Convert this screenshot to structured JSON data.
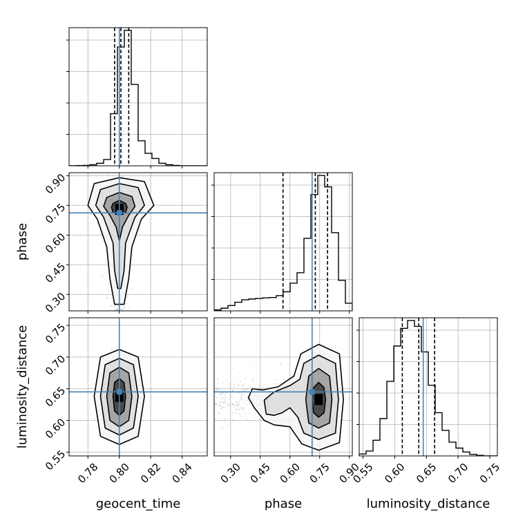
{
  "chart_data": {
    "type": "corner",
    "title": "",
    "parameters": [
      "geocent_time",
      "phase",
      "luminosity_distance"
    ],
    "axis_labels": {
      "geocent_time": "geocent_time",
      "phase": "phase",
      "luminosity_distance": "luminosity_distance"
    },
    "ranges": {
      "geocent_time": [
        0.768,
        0.856
      ],
      "phase": [
        0.217,
        0.915
      ],
      "luminosity_distance": [
        0.544,
        0.762
      ]
    },
    "ticks": {
      "geocent_time": [
        0.78,
        0.8,
        0.82,
        0.84
      ],
      "phase": [
        0.3,
        0.45,
        0.6,
        0.75,
        0.9
      ],
      "luminosity_distance": [
        0.55,
        0.6,
        0.65,
        0.7,
        0.75
      ]
    },
    "tick_labels": {
      "geocent_time": [
        "0.78",
        "0.80",
        "0.82",
        "0.84"
      ],
      "phase": [
        "0.30",
        "0.45",
        "0.60",
        "0.75",
        "0.90"
      ],
      "luminosity_distance": [
        "0.55",
        "0.60",
        "0.65",
        "0.70",
        "0.75"
      ]
    },
    "truths": {
      "geocent_time": 0.8,
      "phase": 0.712,
      "luminosity_distance": 0.645
    },
    "quantiles": {
      "geocent_time": [
        0.797,
        0.801,
        0.806
      ],
      "phase": [
        0.565,
        0.728,
        0.79
      ],
      "luminosity_distance": [
        0.612,
        0.638,
        0.663
      ]
    },
    "histograms": {
      "geocent_time": {
        "edges": [
          0.768,
          0.7724,
          0.7768,
          0.7812,
          0.7856,
          0.79,
          0.7944,
          0.7988,
          0.8032,
          0.8076,
          0.812,
          0.8164,
          0.8208,
          0.8252,
          0.8296,
          0.834,
          0.8384,
          0.8428,
          0.8472,
          0.8516,
          0.856
        ],
        "counts": [
          0,
          1,
          2,
          5,
          12,
          30,
          250,
          570,
          650,
          390,
          120,
          60,
          35,
          12,
          5,
          2,
          0,
          0,
          0,
          0
        ]
      },
      "phase": {
        "edges": [
          0.217,
          0.2519,
          0.2868,
          0.3217,
          0.3566,
          0.3915,
          0.4264,
          0.4613,
          0.4962,
          0.5311,
          0.566,
          0.6009,
          0.6358,
          0.6707,
          0.7056,
          0.7405,
          0.7754,
          0.8103,
          0.8452,
          0.8801,
          0.915
        ],
        "counts": [
          5,
          14,
          28,
          45,
          58,
          62,
          65,
          68,
          70,
          80,
          100,
          145,
          200,
          380,
          610,
          710,
          650,
          410,
          160,
          40
        ]
      },
      "luminosity_distance": {
        "edges": [
          0.544,
          0.5549,
          0.5658,
          0.5767,
          0.5876,
          0.5985,
          0.6094,
          0.6203,
          0.6312,
          0.6421,
          0.653,
          0.6639,
          0.6748,
          0.6857,
          0.6966,
          0.7075,
          0.7184,
          0.7293,
          0.7402,
          0.7511,
          0.762
        ],
        "counts": [
          10,
          25,
          80,
          190,
          380,
          560,
          650,
          690,
          660,
          530,
          360,
          220,
          130,
          70,
          40,
          20,
          8,
          3,
          0,
          0
        ]
      }
    },
    "panels_2d": [
      {
        "x": "geocent_time",
        "y": "phase",
        "center": [
          0.8,
          0.73
        ],
        "contours": [
          [
            [
              0.796,
              0.76
            ],
            [
              0.8,
              0.775
            ],
            [
              0.804,
              0.76
            ],
            [
              0.805,
              0.74
            ],
            [
              0.804,
              0.715
            ],
            [
              0.8,
              0.7
            ],
            [
              0.796,
              0.715
            ],
            [
              0.795,
              0.74
            ]
          ],
          [
            [
              0.792,
              0.79
            ],
            [
              0.8,
              0.815
            ],
            [
              0.808,
              0.795
            ],
            [
              0.81,
              0.745
            ],
            [
              0.806,
              0.7
            ],
            [
              0.802,
              0.64
            ],
            [
              0.8,
              0.57
            ],
            [
              0.798,
              0.64
            ],
            [
              0.794,
              0.7
            ],
            [
              0.79,
              0.745
            ]
          ],
          [
            [
              0.788,
              0.83
            ],
            [
              0.8,
              0.86
            ],
            [
              0.812,
              0.84
            ],
            [
              0.816,
              0.75
            ],
            [
              0.81,
              0.69
            ],
            [
              0.804,
              0.56
            ],
            [
              0.803,
              0.42
            ],
            [
              0.801,
              0.33
            ],
            [
              0.799,
              0.33
            ],
            [
              0.797,
              0.42
            ],
            [
              0.796,
              0.56
            ],
            [
              0.79,
              0.69
            ],
            [
              0.785,
              0.75
            ]
          ],
          [
            [
              0.784,
              0.86
            ],
            [
              0.8,
              0.89
            ],
            [
              0.816,
              0.87
            ],
            [
              0.822,
              0.75
            ],
            [
              0.814,
              0.68
            ],
            [
              0.808,
              0.54
            ],
            [
              0.806,
              0.38
            ],
            [
              0.803,
              0.25
            ],
            [
              0.797,
              0.25
            ],
            [
              0.794,
              0.38
            ],
            [
              0.792,
              0.54
            ],
            [
              0.786,
              0.68
            ],
            [
              0.78,
              0.75
            ]
          ]
        ]
      },
      {
        "x": "geocent_time",
        "y": "luminosity_distance",
        "center": [
          0.8,
          0.638
        ],
        "contours": [
          [
            [
              0.797,
              0.66
            ],
            [
              0.8,
              0.666
            ],
            [
              0.803,
              0.66
            ],
            [
              0.804,
              0.638
            ],
            [
              0.803,
              0.615
            ],
            [
              0.8,
              0.608
            ],
            [
              0.797,
              0.615
            ],
            [
              0.796,
              0.638
            ]
          ],
          [
            [
              0.794,
              0.675
            ],
            [
              0.8,
              0.684
            ],
            [
              0.806,
              0.675
            ],
            [
              0.808,
              0.638
            ],
            [
              0.806,
              0.6
            ],
            [
              0.8,
              0.59
            ],
            [
              0.794,
              0.6
            ],
            [
              0.792,
              0.638
            ]
          ],
          [
            [
              0.791,
              0.688
            ],
            [
              0.8,
              0.698
            ],
            [
              0.809,
              0.688
            ],
            [
              0.812,
              0.638
            ],
            [
              0.809,
              0.588
            ],
            [
              0.8,
              0.577
            ],
            [
              0.791,
              0.588
            ],
            [
              0.788,
              0.638
            ]
          ],
          [
            [
              0.788,
              0.7
            ],
            [
              0.8,
              0.712
            ],
            [
              0.812,
              0.7
            ],
            [
              0.816,
              0.638
            ],
            [
              0.812,
              0.575
            ],
            [
              0.8,
              0.562
            ],
            [
              0.788,
              0.575
            ],
            [
              0.784,
              0.638
            ]
          ]
        ]
      },
      {
        "x": "phase",
        "y": "luminosity_distance",
        "center": [
          0.745,
          0.633
        ],
        "contours": [
          [
            [
              0.72,
              0.652
            ],
            [
              0.745,
              0.66
            ],
            [
              0.772,
              0.652
            ],
            [
              0.78,
              0.633
            ],
            [
              0.772,
              0.612
            ],
            [
              0.745,
              0.605
            ],
            [
              0.72,
              0.612
            ],
            [
              0.712,
              0.633
            ]
          ],
          [
            [
              0.695,
              0.67
            ],
            [
              0.745,
              0.682
            ],
            [
              0.8,
              0.67
            ],
            [
              0.812,
              0.633
            ],
            [
              0.8,
              0.596
            ],
            [
              0.745,
              0.588
            ],
            [
              0.695,
              0.596
            ],
            [
              0.68,
              0.633
            ]
          ],
          [
            [
              0.67,
              0.69
            ],
            [
              0.745,
              0.703
            ],
            [
              0.83,
              0.69
            ],
            [
              0.845,
              0.633
            ],
            [
              0.83,
              0.58
            ],
            [
              0.745,
              0.57
            ],
            [
              0.67,
              0.58
            ],
            [
              0.64,
              0.605
            ],
            [
              0.6,
              0.62
            ],
            [
              0.56,
              0.612
            ],
            [
              0.52,
              0.608
            ],
            [
              0.48,
              0.61
            ],
            [
              0.47,
              0.632
            ],
            [
              0.52,
              0.645
            ],
            [
              0.6,
              0.655
            ],
            [
              0.65,
              0.665
            ]
          ],
          [
            [
              0.655,
              0.705
            ],
            [
              0.745,
              0.72
            ],
            [
              0.85,
              0.705
            ],
            [
              0.87,
              0.633
            ],
            [
              0.85,
              0.565
            ],
            [
              0.745,
              0.553
            ],
            [
              0.66,
              0.563
            ],
            [
              0.6,
              0.59
            ],
            [
              0.52,
              0.593
            ],
            [
              0.47,
              0.6
            ],
            [
              0.44,
              0.612
            ],
            [
              0.42,
              0.62
            ],
            [
              0.39,
              0.636
            ],
            [
              0.41,
              0.65
            ],
            [
              0.46,
              0.648
            ],
            [
              0.54,
              0.653
            ],
            [
              0.62,
              0.67
            ]
          ]
        ]
      }
    ],
    "colors": {
      "truth": "#4682b4",
      "contour": "#000000",
      "hist": "#000000",
      "grid": "#b0b0b0",
      "scatter": "#888888"
    },
    "grid": true,
    "legend": "none"
  }
}
